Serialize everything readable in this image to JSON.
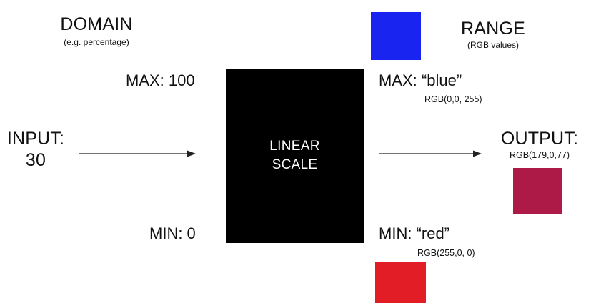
{
  "domain": {
    "title": "DOMAIN",
    "subtitle": "(e.g. percentage)",
    "max_label": "MAX: 100",
    "min_label": "MIN: 0"
  },
  "range": {
    "title": "RANGE",
    "subtitle": "(RGB values)",
    "max_label": "MAX: “blue”",
    "max_rgb": "RGB(0,0, 255)",
    "min_label": "MIN: “red”",
    "min_rgb": "RGB(255,0, 0)",
    "max_color": "#1a24f0",
    "min_color": "#e21d25"
  },
  "input": {
    "label": "INPUT:",
    "value": "30"
  },
  "scale": {
    "line1": "LINEAR",
    "line2": "SCALE"
  },
  "output": {
    "label": "OUTPUT:",
    "rgb": "RGB(179,0,77)",
    "color": "#ad1a47"
  }
}
